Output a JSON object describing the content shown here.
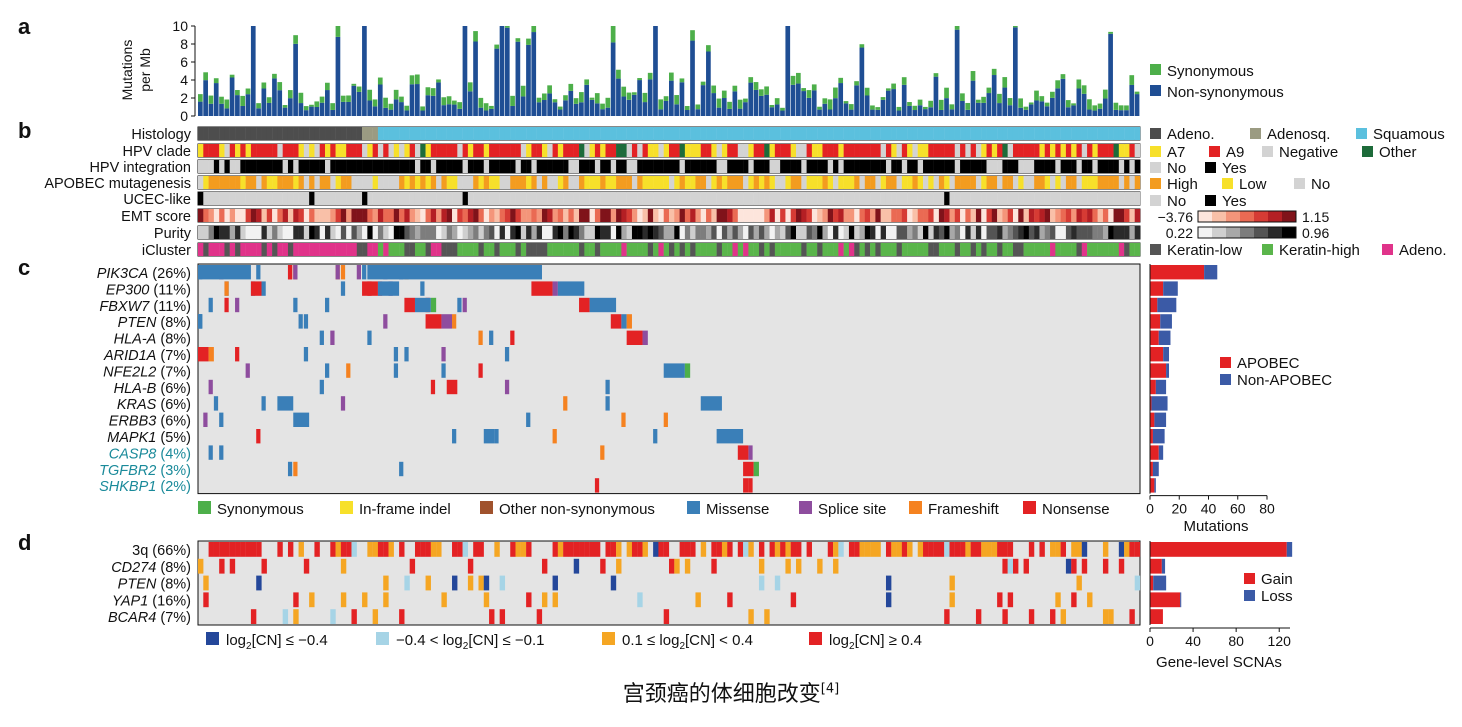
{
  "caption": {
    "text": "宫颈癌的体细胞改变",
    "ref": "[4]"
  },
  "colors": {
    "syn_green": "#4daf4a",
    "nonsyn_blue": "#1f4e94",
    "grid_bg": "#e4e4e4",
    "adeno": "#4d4d4d",
    "adenosq": "#9b9b82",
    "squamous": "#5bc0de",
    "a7": "#f7e02a",
    "a9": "#e32224",
    "negative": "#d3d3d3",
    "other": "#1d6b3a",
    "no": "#d3d3d3",
    "yes": "#000000",
    "apobec_high": "#f39c1f",
    "apobec_low": "#f7e02a",
    "keratin_low": "#555555",
    "keratin_high": "#5ab54b",
    "adeno_ic": "#e0338a",
    "missense": "#3a7fb8",
    "splice": "#8e4d9e",
    "frameshift": "#f58220",
    "nonsense": "#e32224",
    "inframe": "#f7e02a",
    "other_nonsyn": "#a0522d",
    "cn_deep_loss": "#24479a",
    "cn_loss": "#a6d4e6",
    "cn_gain": "#f5a623",
    "cn_amp": "#e32224",
    "apobec_bar": "#e32224",
    "nonapobec_bar": "#3b5aa6"
  },
  "panels": {
    "a": "a",
    "b": "b",
    "c": "c",
    "d": "d"
  },
  "chart_data": [
    {
      "type": "bar",
      "panel": "a",
      "ylabel": "Mutations per Mb",
      "ylim": [
        0,
        10
      ],
      "yticks": [
        "0",
        "2",
        "4",
        "6",
        "8",
        "10"
      ],
      "legend": [
        "Synonymous",
        "Non-synonymous"
      ],
      "n_samples": 178,
      "stacked": true,
      "series_note": "per-sample values estimated",
      "series": [
        {
          "name": "Non-synonymous"
        },
        {
          "name": "Synonymous"
        }
      ]
    },
    {
      "type": "heatmap",
      "panel": "b",
      "tracks": [
        {
          "label": "Histology",
          "legend": [
            "Adeno.",
            "Adenosq.",
            "Squamous"
          ]
        },
        {
          "label": "HPV clade",
          "legend": [
            "A7",
            "A9",
            "Negative",
            "Other"
          ]
        },
        {
          "label": "HPV integration",
          "legend": [
            "No",
            "Yes"
          ]
        },
        {
          "label": "APOBEC mutagenesis",
          "legend": [
            "High",
            "Low",
            "No"
          ]
        },
        {
          "label": "UCEC-like",
          "legend": [
            "No",
            "Yes"
          ]
        },
        {
          "label": "EMT score",
          "range": [
            "−3.76",
            "1.15"
          ]
        },
        {
          "label": "Purity",
          "range": [
            "0.22",
            "0.96"
          ]
        },
        {
          "label": "iCluster",
          "legend": [
            "Keratin-low",
            "Keratin-high",
            "Adeno."
          ]
        }
      ]
    },
    {
      "type": "heatmap",
      "panel": "c",
      "genes": [
        {
          "name": "PIK3CA",
          "pct": "(26%)",
          "apobec": 37,
          "non_apobec": 9
        },
        {
          "name": "EP300",
          "pct": "(11%)",
          "apobec": 9,
          "non_apobec": 10
        },
        {
          "name": "FBXW7",
          "pct": "(11%)",
          "apobec": 5,
          "non_apobec": 13
        },
        {
          "name": "PTEN",
          "pct": "(8%)",
          "apobec": 7,
          "non_apobec": 8
        },
        {
          "name": "HLA-A",
          "pct": "(8%)",
          "apobec": 6,
          "non_apobec": 8
        },
        {
          "name": "ARID1A",
          "pct": "(7%)",
          "apobec": 9,
          "non_apobec": 4
        },
        {
          "name": "NFE2L2",
          "pct": "(7%)",
          "apobec": 11,
          "non_apobec": 2
        },
        {
          "name": "HLA-B",
          "pct": "(6%)",
          "apobec": 4,
          "non_apobec": 7
        },
        {
          "name": "KRAS",
          "pct": "(6%)",
          "apobec": 1,
          "non_apobec": 11
        },
        {
          "name": "ERBB3",
          "pct": "(6%)",
          "apobec": 3,
          "non_apobec": 8
        },
        {
          "name": "MAPK1",
          "pct": "(5%)",
          "apobec": 2,
          "non_apobec": 8
        },
        {
          "name": "CASP8",
          "pct": "(4%)",
          "apobec": 6,
          "non_apobec": 3,
          "highlight": true
        },
        {
          "name": "TGFBR2",
          "pct": "(3%)",
          "apobec": 2,
          "non_apobec": 4,
          "highlight": true
        },
        {
          "name": "SHKBP1",
          "pct": "(2%)",
          "apobec": 3,
          "non_apobec": 1,
          "highlight": true
        }
      ],
      "legend": [
        "Synonymous",
        "In-frame indel",
        "Other non-synonymous",
        "Missense",
        "Splice site",
        "Frameshift",
        "Nonsense"
      ],
      "side_bar": {
        "legend": [
          "APOBEC",
          "Non-APOBEC"
        ],
        "xlabel": "Mutations",
        "xticks": [
          "0",
          "20",
          "40",
          "60",
          "80"
        ],
        "xlim": [
          0,
          80
        ]
      }
    },
    {
      "type": "heatmap",
      "panel": "d",
      "genes": [
        {
          "name": "3q",
          "pct": "(66%)",
          "italic": false,
          "gain": 127,
          "loss": 5
        },
        {
          "name": "CD274",
          "pct": "(8%)",
          "italic": true,
          "gain": 11,
          "loss": 3
        },
        {
          "name": "PTEN",
          "pct": "(8%)",
          "italic": true,
          "gain": 3,
          "loss": 12
        },
        {
          "name": "YAP1",
          "pct": "(16%)",
          "italic": true,
          "gain": 28,
          "loss": 1
        },
        {
          "name": "BCAR4",
          "pct": "(7%)",
          "italic": true,
          "gain": 12,
          "loss": 0
        }
      ],
      "legend": [
        "log2[CN] ≤ −0.4",
        "−0.4 < log2[CN] ≤ −0.1",
        "0.1 ≤ log2[CN] < 0.4",
        "log2[CN] ≥ 0.4"
      ],
      "side_bar": {
        "legend": [
          "Gain",
          "Loss"
        ],
        "xlabel": "Gene-level SCNAs",
        "xticks": [
          "0",
          "40",
          "80",
          "120"
        ],
        "xlim": [
          0,
          130
        ]
      }
    }
  ]
}
